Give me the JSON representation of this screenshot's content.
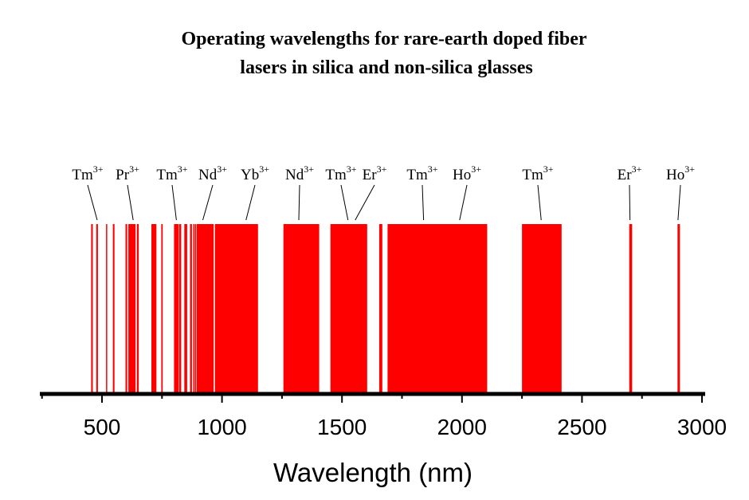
{
  "chart_data": {
    "type": "bar",
    "title": [
      "Operating wavelengths for rare-earth doped fiber",
      "lasers in silica and non-silica glasses"
    ],
    "xlabel": "Wavelength (nm)",
    "ylabel": "",
    "xlim": [
      250,
      3020
    ],
    "xticks": [
      500,
      1000,
      1500,
      2000,
      2500,
      3000
    ],
    "xtick_labels": [
      "500",
      "1000",
      "1500",
      "2000",
      "2500",
      "3000"
    ],
    "bar_color": "#ff0000",
    "grid": false,
    "bands": [
      {
        "start": 455,
        "end": 462
      },
      {
        "start": 476,
        "end": 483
      },
      {
        "start": 517,
        "end": 522
      },
      {
        "start": 545,
        "end": 552
      },
      {
        "start": 598,
        "end": 605
      },
      {
        "start": 610,
        "end": 640
      },
      {
        "start": 645,
        "end": 653
      },
      {
        "start": 706,
        "end": 727
      },
      {
        "start": 747,
        "end": 753
      },
      {
        "start": 800,
        "end": 820
      },
      {
        "start": 822,
        "end": 830
      },
      {
        "start": 843,
        "end": 855
      },
      {
        "start": 867,
        "end": 875
      },
      {
        "start": 880,
        "end": 885
      },
      {
        "start": 887,
        "end": 893
      },
      {
        "start": 895,
        "end": 965
      },
      {
        "start": 970,
        "end": 1150
      },
      {
        "start": 1256,
        "end": 1405
      },
      {
        "start": 1452,
        "end": 1605
      },
      {
        "start": 1655,
        "end": 1668
      },
      {
        "start": 1690,
        "end": 2105
      },
      {
        "start": 2250,
        "end": 2415
      },
      {
        "start": 2697,
        "end": 2709
      },
      {
        "start": 2898,
        "end": 2908
      }
    ],
    "annotations": [
      {
        "ion": "Tm",
        "charge": "3+",
        "target": 480
      },
      {
        "ion": "Pr",
        "charge": "3+",
        "target": 630
      },
      {
        "ion": "Tm",
        "charge": "3+",
        "target": 810
      },
      {
        "ion": "Nd",
        "charge": "3+",
        "target": 920
      },
      {
        "ion": "Yb",
        "charge": "3+",
        "target": 1100
      },
      {
        "ion": "Nd",
        "charge": "3+",
        "target": 1320
      },
      {
        "ion": "Tm",
        "charge": "3+",
        "target": 1525
      },
      {
        "ion": "Er",
        "charge": "3+",
        "target": 1555
      },
      {
        "ion": "Tm",
        "charge": "3+",
        "target": 1840
      },
      {
        "ion": "Ho",
        "charge": "3+",
        "target": 1990
      },
      {
        "ion": "Tm",
        "charge": "3+",
        "target": 2330
      },
      {
        "ion": "Er",
        "charge": "3+",
        "target": 2700
      },
      {
        "ion": "Ho",
        "charge": "3+",
        "target": 2900
      }
    ]
  }
}
